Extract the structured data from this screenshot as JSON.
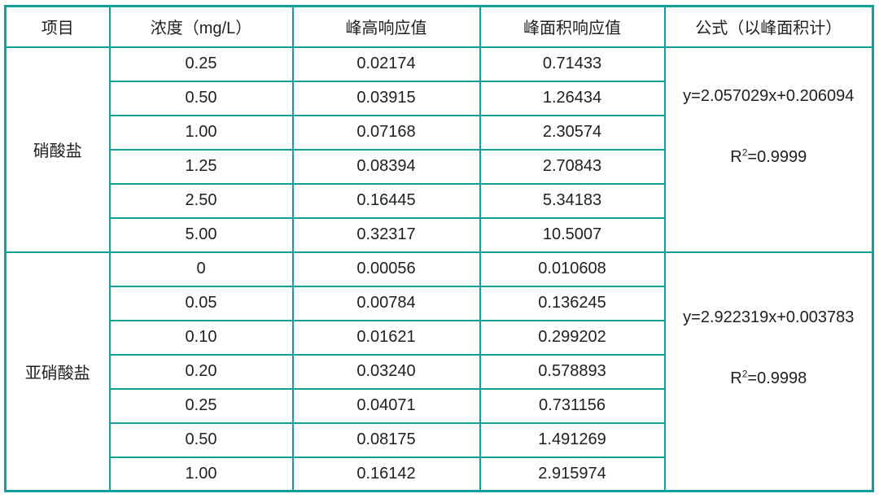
{
  "colors": {
    "border": "#10a09b",
    "text": "#1f1f1f",
    "background": "#ffffff"
  },
  "table": {
    "headers": [
      "项目",
      "浓度（mg/L）",
      "峰高响应值",
      "峰面积响应值",
      "公式（以峰面积计）"
    ],
    "groups": [
      {
        "item": "硝酸盐",
        "rows": [
          [
            "0.25",
            "0.02174",
            "0.71433"
          ],
          [
            "0.50",
            "0.03915",
            "1.26434"
          ],
          [
            "1.00",
            "0.07168",
            "2.30574"
          ],
          [
            "1.25",
            "0.08394",
            "2.70843"
          ],
          [
            "2.50",
            "0.16445",
            "5.34183"
          ],
          [
            "5.00",
            "0.32317",
            "10.5007"
          ]
        ],
        "formula": "y=2.057029x+0.206094",
        "r_squared": {
          "base": "R",
          "sup": "2",
          "value": "=0.9999"
        }
      },
      {
        "item": "亚硝酸盐",
        "rows": [
          [
            "0",
            "0.00056",
            "0.010608"
          ],
          [
            "0.05",
            "0.00784",
            "0.136245"
          ],
          [
            "0.10",
            "0.01621",
            "0.299202"
          ],
          [
            "0.20",
            "0.03240",
            "0.578893"
          ],
          [
            "0.25",
            "0.04071",
            "0.731156"
          ],
          [
            "0.50",
            "0.08175",
            "1.491269"
          ],
          [
            "1.00",
            "0.16142",
            "2.915974"
          ]
        ],
        "formula": "y=2.922319x+0.003783",
        "r_squared": {
          "base": "R",
          "sup": "2",
          "value": "=0.9998"
        }
      }
    ]
  }
}
